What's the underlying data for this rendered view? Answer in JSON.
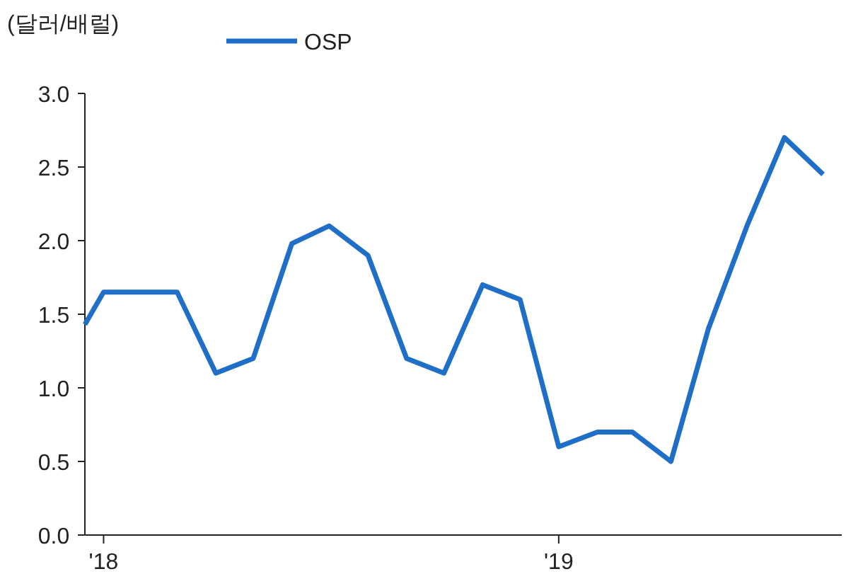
{
  "chart_data": {
    "type": "line",
    "ylabel": "(달러/배럴)",
    "x": [
      "2017-12-17",
      "2018-01",
      "2018-02",
      "2018-03",
      "2018-04",
      "2018-05",
      "2018-06",
      "2018-07",
      "2018-08",
      "2018-09",
      "2018-10",
      "2018-11",
      "2018-12",
      "2019-01",
      "2019-02",
      "2019-03",
      "2019-04",
      "2019-05",
      "2019-06",
      "2019-07",
      "2019-08"
    ],
    "series": [
      {
        "name": "OSP",
        "color": "#1f6fc8",
        "values": [
          1.43,
          1.65,
          1.65,
          1.65,
          1.1,
          1.2,
          1.98,
          2.1,
          1.9,
          1.2,
          1.1,
          1.7,
          1.6,
          0.6,
          0.7,
          0.7,
          0.5,
          1.4,
          2.1,
          2.7,
          2.45
        ]
      }
    ],
    "xlim": [
      "2017-12-17",
      "2019-08-16"
    ],
    "xticks": [
      {
        "value": "2018-01",
        "label": "'18"
      },
      {
        "value": "2019-01",
        "label": "'19"
      }
    ],
    "ylim": [
      0,
      3
    ],
    "yticks": [
      {
        "value": 0,
        "label": "0.0"
      },
      {
        "value": 0.5,
        "label": "0.5"
      },
      {
        "value": 1,
        "label": "1.0"
      },
      {
        "value": 1.5,
        "label": "1.5"
      },
      {
        "value": 2,
        "label": "2.0"
      },
      {
        "value": 2.5,
        "label": "2.5"
      },
      {
        "value": 3,
        "label": "3.0"
      }
    ],
    "legend": "top",
    "grid": false,
    "marker": "none",
    "line_style": "solid"
  }
}
